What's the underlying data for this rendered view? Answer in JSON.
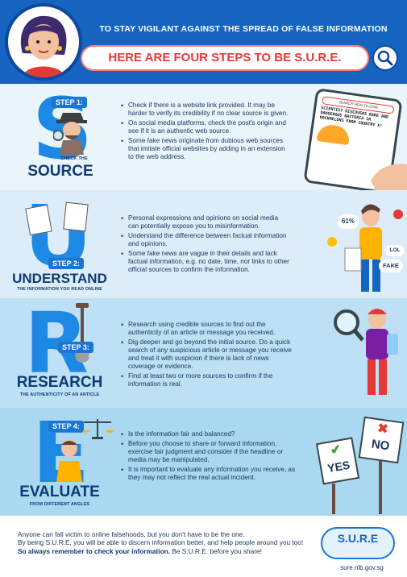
{
  "header": {
    "subtitle": "TO STAY VIGILANT AGAINST THE SPREAD OF FALSE INFORMATION",
    "title_prefix": "HERE ARE FOUR STEPS TO BE ",
    "title_highlight": "S.U.R.E."
  },
  "steps": [
    {
      "badge": "STEP 1:",
      "letter": "S",
      "small_caption": "CHECK THE",
      "word": "SOURCE",
      "bullets": [
        "Check if there is a website link provided. It may be harder to verify its credibility if no clear source is given.",
        "On social media platforms, check the post's origin and see if it is an authentic web source.",
        "Some fake news originate from dubious web sources that imitate official websites by adding in an extension to the web address."
      ],
      "illustration": {
        "url": "SEARCH.HEALTH.COM",
        "headline": "SCIENTIST DISCOVERS RARE AND DANGEROUS BACTERIA IN ROCKMELONS FROM COUNTRY X!"
      }
    },
    {
      "badge": "STEP 2:",
      "letter": "U",
      "word": "UNDERSTAND",
      "caption": "THE INFORMATION YOU READ ONLINE",
      "bullets": [
        "Personal expressions and opinions on social media can potentially expose you to misinformation.",
        "Understand the difference between factual information and opinions.",
        "Some fake news are vague in their details and lack factual information, e.g. no date, time, nor links to other official sources to confirm the information."
      ],
      "illustration": {
        "percent": "61%",
        "lol": "LOL",
        "fake": "FAKE"
      }
    },
    {
      "badge": "STEP 3:",
      "letter": "R",
      "word": "RESEARCH",
      "caption": "THE AUTHENTICITY OF AN ARTICLE",
      "bullets": [
        "Research using credible sources to find out the authenticity of an article or message you received.",
        "Dig deeper and go beyond the initial source. Do a quick search of any suspicious article or message you receive and treat it with suspicion if there is lack of news coverage or evidence.",
        "Find at least two or more sources to confirm if the information is real."
      ]
    },
    {
      "badge": "STEP 4:",
      "letter": "E",
      "word": "EVALUATE",
      "caption": "FROM DIFFERENT ANGLES",
      "bullets": [
        "Is the information fair and balanced?",
        "Before you choose to share or forward information, exercise fair judgment and consider if the headline or media may be manipulated.",
        "It is important to evaluate any information you receive, as they may not reflect the real actual incident."
      ],
      "illustration": {
        "yes": "YES",
        "no": "NO"
      }
    }
  ],
  "footer": {
    "line1": "Anyone can fall victim to online falsehoods, but you don't have to be the one.",
    "line2": "By being S.U.R.E, you will be able to discern information better, and help people around you too!",
    "line3_bold": "So always remember to check your information.",
    "line3_rest": " Be S.U.R.E. before you share!",
    "logo": "S.U.R.E",
    "url": "sure.nlb.gov.sg"
  },
  "colors": {
    "primary": "#1565c0",
    "accent": "#e53935",
    "dark_text": "#0d3a74"
  }
}
